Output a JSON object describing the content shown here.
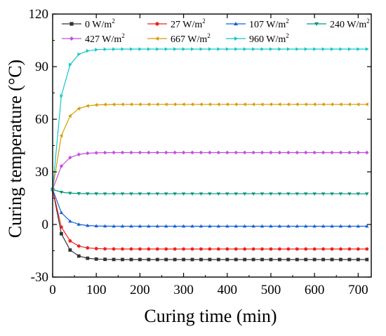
{
  "chart_data": {
    "type": "line",
    "xlabel": "Curing time (min)",
    "ylabel": "Curing temperature (°C)",
    "xlim": [
      0,
      730
    ],
    "ylim": [
      -30,
      120
    ],
    "xticks": [
      0,
      100,
      200,
      300,
      400,
      500,
      600,
      700
    ],
    "yticks": [
      -30,
      0,
      30,
      60,
      90,
      120
    ],
    "x_tick_labels": [
      "0",
      "100",
      "200",
      "300",
      "400",
      "500",
      "600",
      "700"
    ],
    "y_tick_labels": [
      "-30",
      "0",
      "30",
      "60",
      "90",
      "120"
    ],
    "x_step": 20,
    "x_max": 720,
    "initial_temperature": 20,
    "grid": false,
    "legend_position": "top",
    "series": [
      {
        "name": "0 W/m",
        "name_sup": "2",
        "color": "#333333",
        "marker": "square",
        "steady": -20.0,
        "decay_rate": 0.05
      },
      {
        "name": "27 W/m",
        "name_sup": "2",
        "color": "#ee2222",
        "marker": "circle",
        "steady": -14.0,
        "decay_rate": 0.05
      },
      {
        "name": "107 W/m",
        "name_sup": "2",
        "color": "#1560d8",
        "marker": "triangle-up",
        "steady": -1.0,
        "decay_rate": 0.05
      },
      {
        "name": "240 W/m",
        "name_sup": "2",
        "color": "#00997a",
        "marker": "triangle-down",
        "steady": 17.5,
        "decay_rate": 0.05
      },
      {
        "name": "427 W/m",
        "name_sup": "2",
        "color": "#c44ee0",
        "marker": "diamond",
        "steady": 41.0,
        "decay_rate": 0.05
      },
      {
        "name": "667 W/m",
        "name_sup": "2",
        "color": "#d99a00",
        "marker": "triangle-left",
        "steady": 68.5,
        "decay_rate": 0.05
      },
      {
        "name": "960 W/m",
        "name_sup": "2",
        "color": "#10c8c8",
        "marker": "triangle-right",
        "steady": 100.0,
        "decay_rate": 0.055
      }
    ]
  }
}
